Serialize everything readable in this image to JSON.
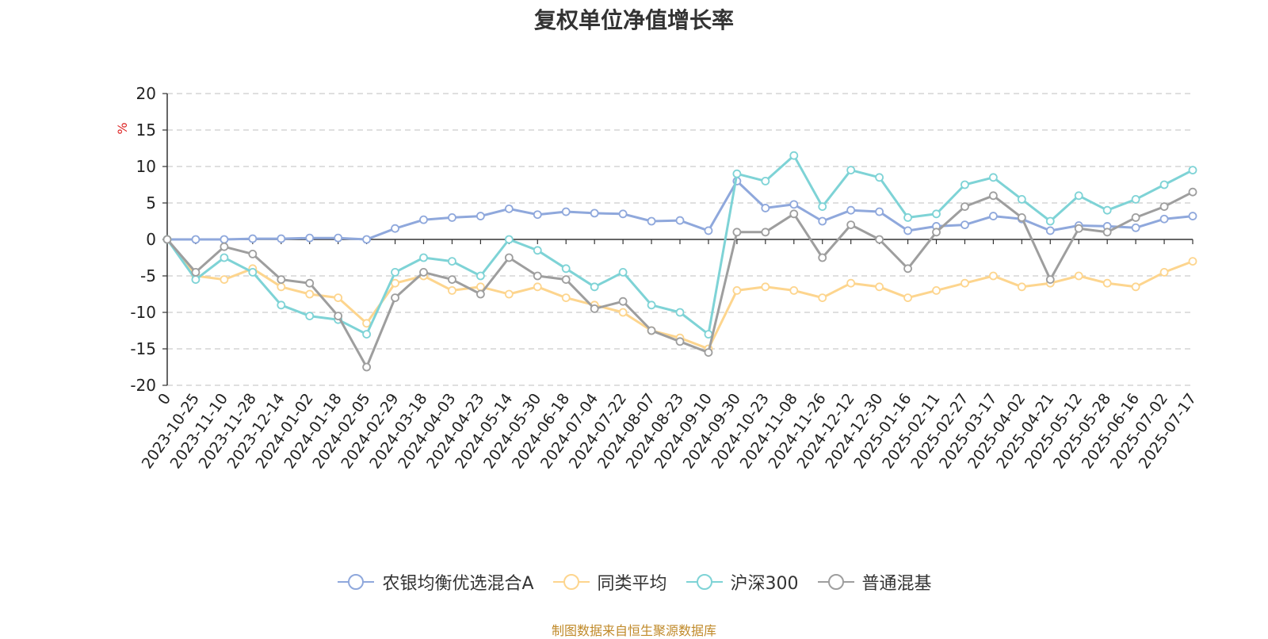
{
  "source_note": "制图数据来自恒生聚源数据库",
  "chart_data": {
    "type": "line",
    "title": "复权单位净值增长率",
    "ylabel": "%",
    "ylim": [
      -20,
      20
    ],
    "yticks": [
      20,
      15,
      10,
      5,
      0,
      -5,
      -10,
      -15,
      -20
    ],
    "grid": true,
    "legend": "bottom-center",
    "x_tick_labels": [
      "0",
      "2023-10-25",
      "2023-11-10",
      "2023-11-28",
      "2023-12-14",
      "2024-01-02",
      "2024-01-18",
      "2024-02-05",
      "2024-02-29",
      "2024-03-18",
      "2024-04-03",
      "2024-04-23",
      "2024-05-14",
      "2024-05-30",
      "2024-06-18",
      "2024-07-04",
      "2024-07-22",
      "2024-08-07",
      "2024-08-23",
      "2024-09-10",
      "2024-09-30",
      "2024-10-23",
      "2024-11-08",
      "2024-11-26",
      "2024-12-12",
      "2024-12-30",
      "2025-01-16",
      "2025-02-11",
      "2025-02-27",
      "2025-03-17",
      "2025-04-02",
      "2025-04-21",
      "2025-05-12",
      "2025-05-28",
      "2025-06-16",
      "2025-07-02",
      "2025-07-17"
    ],
    "series": [
      {
        "name": "农银均衡优选混合A",
        "color": "#8fa8dc",
        "values": [
          0,
          0,
          0,
          0.1,
          0.1,
          0.2,
          0.2,
          0,
          1.5,
          2.7,
          3.0,
          3.2,
          4.2,
          3.4,
          3.8,
          3.6,
          3.5,
          2.5,
          2.6,
          1.2,
          8.0,
          4.3,
          4.8,
          2.5,
          4.0,
          3.8,
          1.2,
          1.8,
          2.0,
          3.2,
          2.8,
          1.2,
          1.9,
          1.8,
          1.6,
          2.8,
          3.2
        ]
      },
      {
        "name": "同类平均",
        "color": "#fdd58e",
        "values": [
          0,
          -5.0,
          -5.5,
          -4.0,
          -6.5,
          -7.5,
          -8.0,
          -11.5,
          -6.0,
          -5.0,
          -7.0,
          -6.5,
          -7.5,
          -6.5,
          -8.0,
          -9.0,
          -10.0,
          -12.5,
          -13.5,
          -15.0,
          -7.0,
          -6.5,
          -7.0,
          -8.0,
          -6.0,
          -6.5,
          -8.0,
          -7.0,
          -6.0,
          -5.0,
          -6.5,
          -6.0,
          -5.0,
          -6.0,
          -6.5,
          -4.5,
          -3.0
        ]
      },
      {
        "name": "沪深300",
        "color": "#7ed3d6",
        "values": [
          0,
          -5.5,
          -2.5,
          -4.5,
          -9.0,
          -10.5,
          -11.0,
          -13.0,
          -4.5,
          -2.5,
          -3.0,
          -5.0,
          0,
          -1.5,
          -4.0,
          -6.5,
          -4.5,
          -9.0,
          -10.0,
          -13.0,
          9.0,
          8.0,
          11.5,
          4.5,
          9.5,
          8.5,
          3.0,
          3.5,
          7.5,
          8.5,
          5.5,
          2.5,
          6.0,
          4.0,
          5.5,
          7.5,
          9.5
        ]
      },
      {
        "name": "普通混基",
        "color": "#9e9e9e",
        "values": [
          0,
          -4.5,
          -1.0,
          -2.0,
          -5.5,
          -6.0,
          -10.5,
          -17.5,
          -8.0,
          -4.5,
          -5.5,
          -7.5,
          -2.5,
          -5.0,
          -5.5,
          -9.5,
          -8.5,
          -12.5,
          -14.0,
          -15.5,
          1.0,
          1.0,
          3.5,
          -2.5,
          2.0,
          0,
          -4.0,
          1.0,
          4.5,
          6.0,
          3.0,
          -5.5,
          1.5,
          1.0,
          3.0,
          4.5,
          6.5
        ]
      }
    ]
  }
}
